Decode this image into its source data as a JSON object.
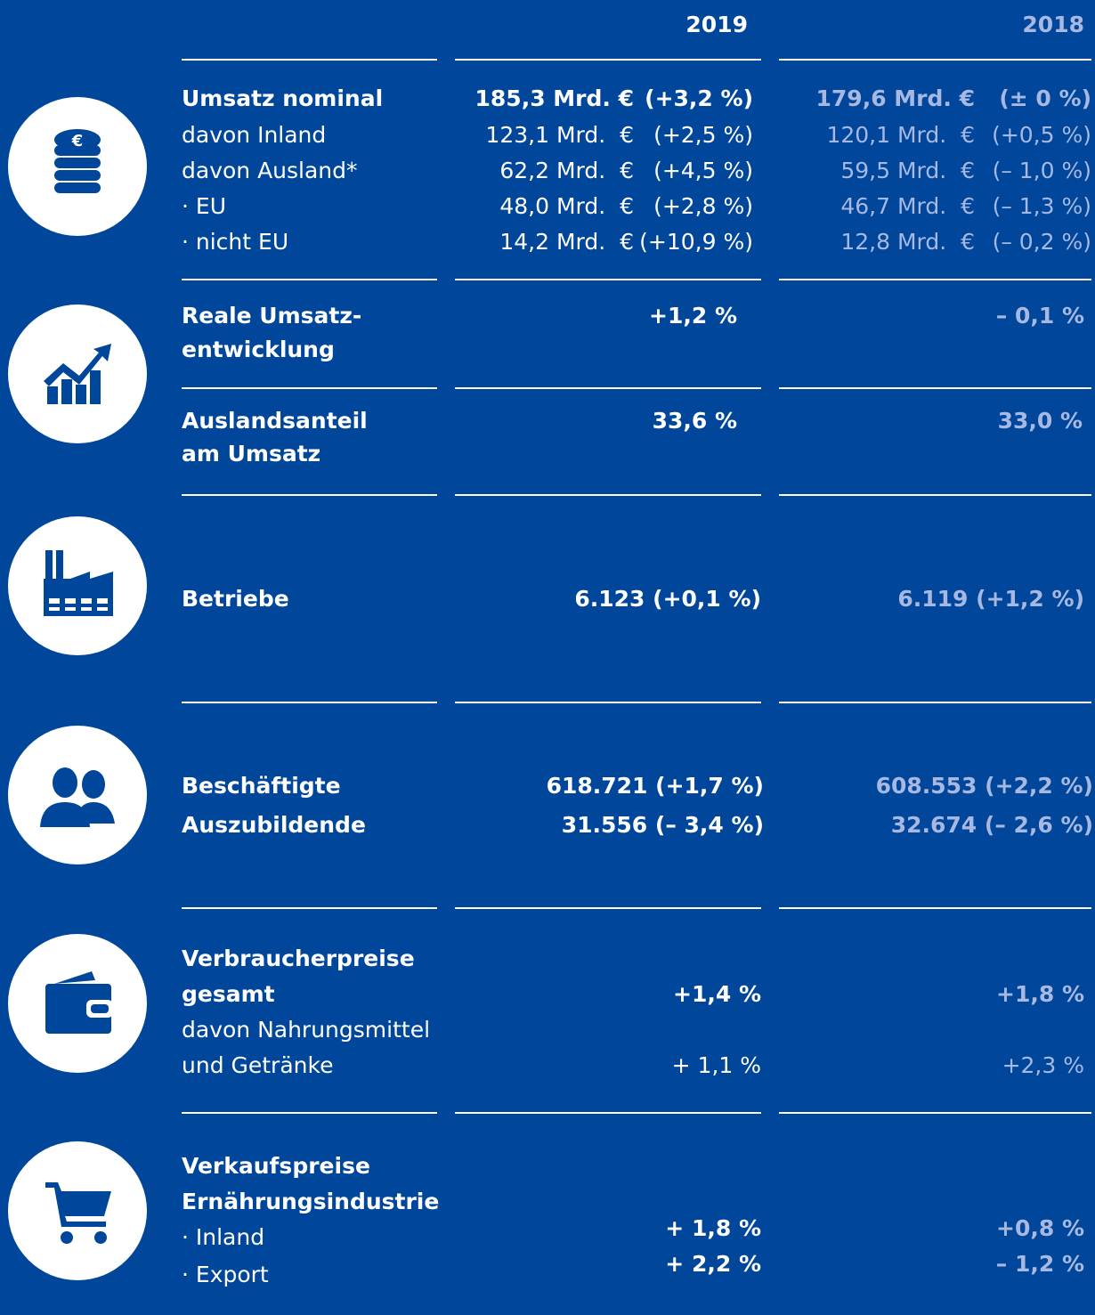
{
  "header": {
    "year1": "2019",
    "year2": "2018"
  },
  "umsatz": {
    "rows": [
      {
        "label": "Umsatz nominal",
        "y2019": "185,3 Mrd. €",
        "c2019": "(+3,2 %)",
        "y2018": "179,6 Mrd. €",
        "c2018": "(± 0 %)"
      },
      {
        "label": "davon Inland",
        "y2019": "123,1 Mrd.  €",
        "c2019": "(+2,5 %)",
        "y2018": "120,1 Mrd.  €",
        "c2018": "(+0,5 %)"
      },
      {
        "label": "davon Ausland*",
        "y2019": "62,2 Mrd.  €",
        "c2019": "(+4,5 %)",
        "y2018": "59,5 Mrd.  €",
        "c2018": "(– 1,0 %)"
      },
      {
        "label": "· EU",
        "y2019": "48,0 Mrd.  €",
        "c2019": "(+2,8 %)",
        "y2018": "46,7 Mrd.  €",
        "c2018": "(– 1,3 %)"
      },
      {
        "label": "· nicht EU",
        "y2019": "14,2 Mrd.  €",
        "c2019": "(+10,9 %)",
        "y2018": "12,8 Mrd.  €",
        "c2018": "(– 0,2 %)"
      }
    ]
  },
  "real": {
    "label": [
      "Reale Umsatz-",
      "entwicklung"
    ],
    "v2019": "+1,2 %",
    "v2018": "– 0,1 %"
  },
  "auslandsanteil": {
    "label": [
      "Auslandsanteil",
      "am Umsatz"
    ],
    "v2019": "33,6 %",
    "v2018": "33,0 %"
  },
  "betriebe": {
    "label": "Betriebe",
    "v2019": "6.123 (+0,1 %)",
    "v2018": "6.119 (+1,2 %)"
  },
  "beschaeftigte": {
    "rows": [
      {
        "label": "Beschäftigte",
        "v2019": "618.721 (+1,7 %)",
        "v2018": "608.553 (+2,2 %)"
      },
      {
        "label": "Auszubildende",
        "v2019": "31.556 (– 3,4 %)",
        "v2018": "32.674 (– 2,6 %)"
      }
    ]
  },
  "verbraucherpreise": {
    "rows": [
      {
        "label": [
          "Verbraucherpreise",
          "gesamt"
        ],
        "v2019": "+1,4 %",
        "v2018": "+1,8 %"
      },
      {
        "label": [
          "davon Nahrungsmittel",
          "und Getränke"
        ],
        "v2019": "+ 1,1 %",
        "v2018": "+2,3 %"
      }
    ]
  },
  "verkaufspreise": {
    "title": [
      "Verkaufspreise",
      "Ernährungsindustrie"
    ],
    "rows": [
      {
        "label": "· Inland",
        "v2019": "+ 1,8 %",
        "v2018": "+0,8 %"
      },
      {
        "label": "· Export",
        "v2019": "+ 2,2 %",
        "v2018": "– 1,2 %"
      }
    ]
  }
}
